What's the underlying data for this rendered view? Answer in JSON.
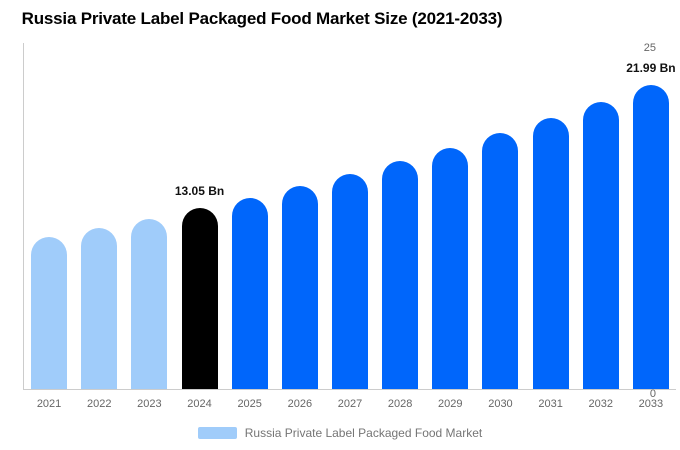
{
  "title": "Russia Private Label Packaged Food Market Size (2021-2033)",
  "legend": {
    "label": "Russia Private Label Packaged Food Market"
  },
  "colors": {
    "past": "#a0ccfa",
    "highlight": "#000000",
    "forecast": "#0066fb",
    "axis_line": "#cccccc",
    "tick_text": "#666666",
    "legend_text": "#757575",
    "annotation_text": "#111111",
    "background": "#ffffff"
  },
  "chart_data": {
    "type": "bar",
    "title": "Russia Private Label Packaged Food Market Size (2021-2033)",
    "unit": "Bn",
    "categories": [
      "2021",
      "2022",
      "2023",
      "2024",
      "2025",
      "2026",
      "2027",
      "2028",
      "2029",
      "2030",
      "2031",
      "2032",
      "2033"
    ],
    "values": [
      10.96,
      11.62,
      12.31,
      13.05,
      13.83,
      14.65,
      15.53,
      16.46,
      17.44,
      18.48,
      19.58,
      20.75,
      21.99
    ],
    "bar_color_keys": [
      "past",
      "past",
      "past",
      "highlight",
      "forecast",
      "forecast",
      "forecast",
      "forecast",
      "forecast",
      "forecast",
      "forecast",
      "forecast",
      "forecast"
    ],
    "annotations": [
      {
        "category": "2024",
        "text": "13.05 Bn"
      },
      {
        "category": "2033",
        "text": "21.99 Bn"
      }
    ],
    "xlabel": "",
    "ylabel": "",
    "ylim": [
      0,
      25
    ],
    "yticks": [
      0,
      5,
      10,
      15,
      20,
      25
    ],
    "grid": false,
    "legend_position": "bottom",
    "legend_entries": [
      "Russia Private Label Packaged Food Market"
    ]
  }
}
